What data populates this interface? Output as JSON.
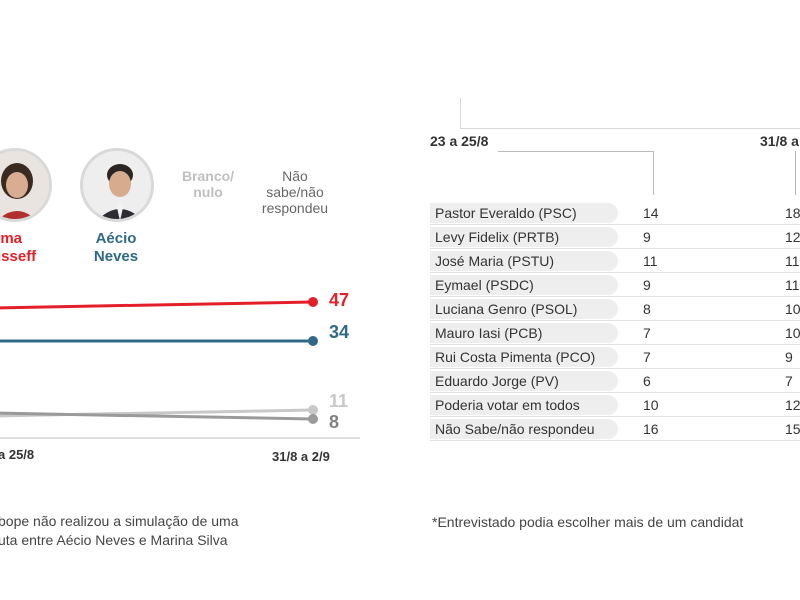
{
  "chart_data": [
    {
      "type": "line",
      "x": [
        "a 25/8",
        "31/8 a 2/9"
      ],
      "series": [
        {
          "name": "ilma\nusseff",
          "values": [
            45,
            47
          ],
          "color": "#e3202a"
        },
        {
          "name": "Aécio\nNeves",
          "values": [
            34,
            34
          ],
          "color": "#2e6a86"
        },
        {
          "name": "Branco/\nnulo",
          "values": [
            9,
            11
          ],
          "color": "#c8c8c8"
        },
        {
          "name": "Não\nsabe/não\nrespondeu",
          "values": [
            10,
            8
          ],
          "color": "#9a9a9a"
        }
      ],
      "end_labels": [
        "47",
        "34",
        "11",
        "8"
      ],
      "note": "bope não realizou a simulação de uma\nuta entre Aécio Neves e Marina Silva"
    },
    {
      "type": "table",
      "columns": [
        "23 a 25/8",
        "31/8 a"
      ],
      "rows": [
        {
          "label": "Pastor Everaldo (PSC)",
          "v1": "14",
          "v2": "18"
        },
        {
          "label": "Levy Fidelix (PRTB)",
          "v1": "9",
          "v2": "12"
        },
        {
          "label": "José Maria (PSTU)",
          "v1": "11",
          "v2": "11"
        },
        {
          "label": "Eymael (PSDC)",
          "v1": "9",
          "v2": "11"
        },
        {
          "label": "Luciana Genro (PSOL)",
          "v1": "8",
          "v2": "10"
        },
        {
          "label": "Mauro Iasi (PCB)",
          "v1": "7",
          "v2": "10"
        },
        {
          "label": "Rui Costa Pimenta (PCO)",
          "v1": "7",
          "v2": "9"
        },
        {
          "label": "Eduardo Jorge (PV)",
          "v1": "6",
          "v2": "7"
        },
        {
          "label": "Poderia votar em todos",
          "v1": "10",
          "v2": "12"
        },
        {
          "label": "Não Sabe/não respondeu",
          "v1": "16",
          "v2": "15"
        }
      ],
      "note": "*Entrevistado podia escolher mais de um candidat"
    }
  ]
}
